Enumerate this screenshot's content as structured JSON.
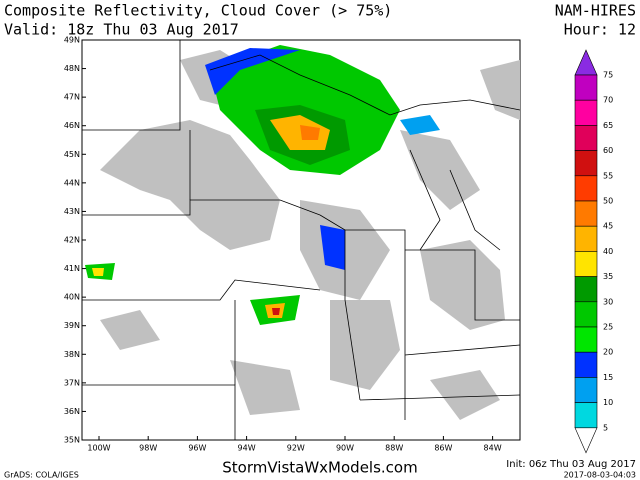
{
  "header": {
    "title": "Composite Reflectivity, Cloud Cover (> 75%)",
    "valid": "Valid: 18z Thu 03 Aug 2017",
    "model": "NAM-HIRES",
    "hour": "Hour: 12"
  },
  "map": {
    "lat_labels": [
      "49N",
      "48N",
      "47N",
      "46N",
      "45N",
      "44N",
      "43N",
      "42N",
      "41N",
      "40N",
      "39N",
      "38N",
      "37N",
      "36N",
      "35N"
    ],
    "lon_labels": [
      "100W",
      "98W",
      "96W",
      "94W",
      "92W",
      "90W",
      "88W",
      "86W",
      "84W"
    ]
  },
  "colorbar": {
    "levels": [
      75,
      70,
      65,
      60,
      55,
      50,
      45,
      40,
      35,
      30,
      25,
      20,
      15,
      10,
      5
    ],
    "colors": [
      "#8a2be2",
      "#c000c0",
      "#ff00a0",
      "#e0005a",
      "#d01010",
      "#ff3c00",
      "#ff7a00",
      "#ffb400",
      "#ffe400",
      "#009a00",
      "#00c800",
      "#00e600",
      "#0032ff",
      "#00a0f0",
      "#00d8e0",
      "#ffffff"
    ]
  },
  "footer": {
    "site": "StormVistaWxModels.com",
    "init": "Init: 06z Thu 03 Aug 2017",
    "stamp": "2017-08-03-04:03",
    "grads": "GrADS: COLA/IGES"
  }
}
